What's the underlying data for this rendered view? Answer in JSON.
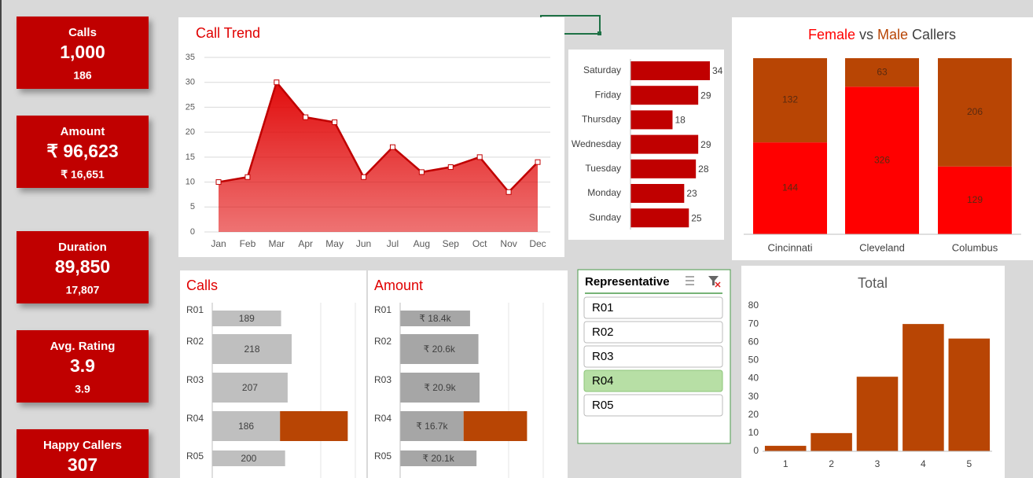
{
  "kpis": [
    {
      "label": "Calls",
      "value": "1,000",
      "sub": "186"
    },
    {
      "label": "Amount",
      "value": "₹ 96,623",
      "sub": "₹ 16,651"
    },
    {
      "label": "Duration",
      "value": "89,850",
      "sub": "17,807"
    },
    {
      "label": "Avg. Rating",
      "value": "3.9",
      "sub": "3.9"
    },
    {
      "label": "Happy Callers",
      "value": "307"
    }
  ],
  "slicer": {
    "title": "Representative",
    "items": [
      "R01",
      "R02",
      "R03",
      "R04",
      "R05"
    ],
    "selected": "R04"
  },
  "chart_data": [
    {
      "type": "area",
      "title": "Call Trend",
      "categories": [
        "Jan",
        "Feb",
        "Mar",
        "Apr",
        "May",
        "Jun",
        "Jul",
        "Aug",
        "Sep",
        "Oct",
        "Nov",
        "Dec"
      ],
      "values": [
        10,
        11,
        30,
        23,
        22,
        11,
        17,
        12,
        13,
        15,
        8,
        14
      ],
      "color": "#e00000",
      "line_color": "#c00000",
      "ylim": [
        0,
        35
      ],
      "yticks": [
        0,
        5,
        10,
        15,
        20,
        25,
        30,
        35
      ],
      "grid": true
    },
    {
      "type": "hbar",
      "categories": [
        "Saturday",
        "Friday",
        "Thursday",
        "Wednesday",
        "Tuesday",
        "Monday",
        "Sunday"
      ],
      "values": [
        34,
        29,
        18,
        29,
        28,
        23,
        25
      ],
      "color": "#c00000"
    },
    {
      "type": "stacked100",
      "title_joiner": "vs",
      "title_suffix": "Callers",
      "categories": [
        "Cincinnati",
        "Cleveland",
        "Columbus"
      ],
      "series": [
        {
          "name": "Female",
          "color": "#ff0000",
          "values": [
            144,
            326,
            129
          ]
        },
        {
          "name": "Male",
          "color": "#b84504",
          "values": [
            132,
            63,
            206
          ]
        }
      ]
    },
    {
      "type": "hbar-highlight",
      "title": "Calls",
      "categories": [
        "R01",
        "R02",
        "R03",
        "R04",
        "R05"
      ],
      "values": [
        189,
        218,
        207,
        186,
        200
      ],
      "color": "#bfbfbf",
      "highlight_values": [
        null,
        null,
        null,
        186,
        null
      ],
      "highlight_color": "#b84504"
    },
    {
      "type": "hbar-highlight",
      "title": "Amount",
      "categories": [
        "R01",
        "R02",
        "R03",
        "R04",
        "R05"
      ],
      "values": [
        18400,
        20600,
        20900,
        16700,
        20100
      ],
      "value_labels": [
        "₹ 18.4k",
        "₹ 20.6k",
        "₹ 20.9k",
        "₹ 16.7k",
        "₹ 20.1k"
      ],
      "color": "#a6a6a6",
      "highlight_values": [
        null,
        null,
        null,
        16700,
        null
      ],
      "highlight_color": "#b84504"
    },
    {
      "type": "bar",
      "title": "Total",
      "categories": [
        "1",
        "2",
        "3",
        "4",
        "5"
      ],
      "values": [
        3,
        10,
        41,
        70,
        62
      ],
      "color": "#b84504",
      "ylim": [
        0,
        80
      ],
      "yticks": [
        0,
        10,
        20,
        30,
        40,
        50,
        60,
        70,
        80
      ]
    }
  ]
}
